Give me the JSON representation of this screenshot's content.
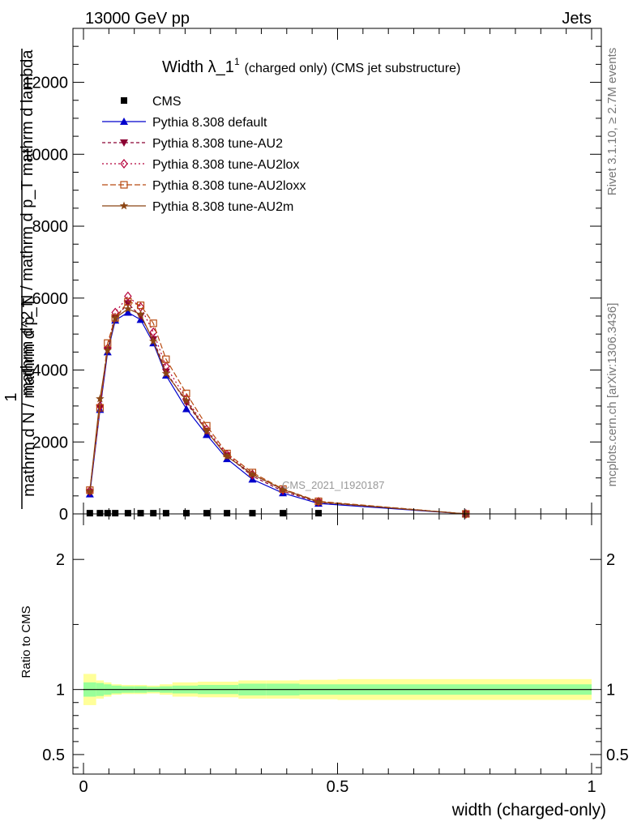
{
  "header": {
    "left": "13000 GeV pp",
    "right": "Jets"
  },
  "side": {
    "rivet": "Rivet 3.1.10, ≥ 2.7M events",
    "mcplots": "mcplots.cern.ch [arXiv:1306.3436]"
  },
  "chart_data": {
    "type": "line",
    "title": "Width λ_1",
    "title_sup": "1",
    "title_note": "(charged only) (CMS jet substructure)",
    "ylabel_num": "1",
    "ylabel_den": "mathrm d N / mathrm d p_T",
    "ylabel_right": "mathrm d^2 N / mathrm d p_T mathrm d lambda",
    "watermark": "CMS_2021_I1920187",
    "xlabel": "width (charged-only)",
    "ratio_ylabel": "Ratio to CMS",
    "xlim": [
      0,
      1
    ],
    "ylim": [
      0,
      13500
    ],
    "ratio_ylim": [
      0.35,
      2.35
    ],
    "main_yticks": [
      "0",
      "2000",
      "4000",
      "6000",
      "8000",
      "10000",
      "12000"
    ],
    "ratio_yticks": [
      "0.5",
      "1",
      "2"
    ],
    "xticks": [
      "0",
      "0.5",
      "1"
    ],
    "x": [
      0.0125,
      0.0325,
      0.0475,
      0.0625,
      0.0875,
      0.1125,
      0.1375,
      0.1625,
      0.2025,
      0.2425,
      0.2825,
      0.3325,
      0.3925,
      0.4625,
      0.7525
    ],
    "series": [
      {
        "name": "CMS",
        "color": "#000000",
        "marker": "square",
        "dash": "none",
        "values": [
          20,
          20,
          20,
          20,
          20,
          20,
          20,
          20,
          20,
          20,
          20,
          20,
          20,
          20,
          0
        ]
      },
      {
        "name": "Pythia 8.308 default",
        "color": "#0000cc",
        "marker": "triangle-up",
        "dash": "solid",
        "values": [
          550,
          2900,
          4500,
          5380,
          5600,
          5400,
          4750,
          3850,
          2920,
          2200,
          1530,
          960,
          580,
          290,
          0
        ]
      },
      {
        "name": "Pythia 8.308 tune-AU2",
        "color": "#8b0033",
        "marker": "triangle-down",
        "dash": "4,3",
        "values": [
          600,
          2950,
          4550,
          5450,
          5850,
          5500,
          4850,
          3950,
          3100,
          2300,
          1620,
          1050,
          630,
          320,
          0
        ]
      },
      {
        "name": "Pythia 8.308 tune-AU2lox",
        "color": "#b5003a",
        "marker": "diamond",
        "dash": "2,3",
        "values": [
          640,
          3000,
          4600,
          5600,
          6050,
          5750,
          5050,
          4100,
          3200,
          2350,
          1650,
          1100,
          670,
          340,
          0
        ]
      },
      {
        "name": "Pythia 8.308 tune-AU2loxx",
        "color": "#b84a10",
        "marker": "square-open",
        "dash": "7,3",
        "values": [
          660,
          2950,
          4750,
          5450,
          5900,
          5800,
          5300,
          4300,
          3350,
          2450,
          1680,
          1150,
          690,
          350,
          0
        ]
      },
      {
        "name": "Pythia 8.308 tune-AU2m",
        "color": "#8b4513",
        "marker": "star",
        "dash": "solid",
        "values": [
          620,
          3200,
          4550,
          5450,
          5700,
          5550,
          4800,
          3900,
          3150,
          2300,
          1600,
          1100,
          680,
          330,
          0
        ]
      }
    ],
    "ratio_bins": [
      0,
      0.025,
      0.04,
      0.055,
      0.075,
      0.1,
      0.125,
      0.15,
      0.175,
      0.225,
      0.26,
      0.305,
      0.36,
      0.425,
      0.5,
      1.0
    ],
    "ratio_green": [
      0.055,
      0.05,
      0.04,
      0.03,
      0.025,
      0.025,
      0.02,
      0.025,
      0.03,
      0.035,
      0.035,
      0.045,
      0.045,
      0.04,
      0.04
    ],
    "ratio_yellow": [
      0.12,
      0.07,
      0.055,
      0.04,
      0.035,
      0.035,
      0.03,
      0.04,
      0.055,
      0.06,
      0.06,
      0.07,
      0.07,
      0.075,
      0.08
    ]
  }
}
